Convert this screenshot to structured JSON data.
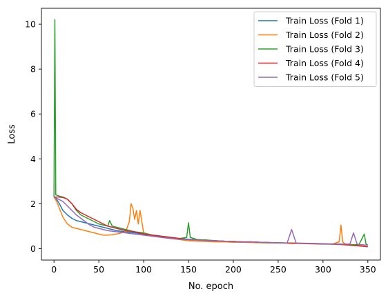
{
  "chart_data": {
    "type": "line",
    "title": "",
    "xlabel": "No. epoch",
    "ylabel": "Loss",
    "xlim": [
      -14,
      364
    ],
    "ylim": [
      -0.51,
      10.71
    ],
    "xticks": [
      0,
      50,
      100,
      150,
      200,
      250,
      300,
      350
    ],
    "xtick_labels": [
      "0",
      "50",
      "100",
      "150",
      "200",
      "250",
      "300",
      "350"
    ],
    "yticks": [
      0,
      2,
      4,
      6,
      8,
      10
    ],
    "ytick_labels": [
      "0",
      "2",
      "4",
      "6",
      "8",
      "10"
    ],
    "grid": false,
    "legend_position": "top-right",
    "series": [
      {
        "name": "Train Loss (Fold 1)",
        "color": "#1f77b4",
        "x": [
          0,
          3,
          6,
          10,
          15,
          20,
          25,
          30,
          35,
          40,
          45,
          50,
          55,
          60,
          70,
          80,
          90,
          100,
          110,
          120,
          130,
          140,
          150,
          160,
          170,
          180,
          190,
          200,
          210,
          220,
          230,
          240,
          250,
          260,
          270,
          280,
          290,
          300,
          310,
          320,
          330,
          340,
          350
        ],
        "y": [
          2.3,
          2.2,
          2.0,
          1.7,
          1.5,
          1.35,
          1.25,
          1.2,
          1.15,
          1.1,
          1.05,
          1.0,
          0.95,
          0.9,
          0.8,
          0.75,
          0.7,
          0.65,
          0.6,
          0.55,
          0.5,
          0.45,
          0.42,
          0.4,
          0.38,
          0.35,
          0.33,
          0.32,
          0.3,
          0.3,
          0.28,
          0.27,
          0.26,
          0.25,
          0.24,
          0.23,
          0.22,
          0.21,
          0.2,
          0.2,
          0.18,
          0.17,
          0.15
        ]
      },
      {
        "name": "Train Loss (Fold 2)",
        "color": "#ff7f0e",
        "x": [
          0,
          3,
          6,
          10,
          15,
          20,
          25,
          30,
          35,
          40,
          45,
          50,
          55,
          60,
          65,
          70,
          75,
          80,
          84,
          86,
          88,
          90,
          92,
          94,
          96,
          98,
          100,
          110,
          120,
          130,
          140,
          150,
          160,
          170,
          180,
          190,
          200,
          210,
          220,
          230,
          240,
          250,
          260,
          270,
          280,
          290,
          300,
          310,
          318,
          320,
          322,
          325,
          330,
          340,
          350
        ],
        "y": [
          2.3,
          2.1,
          1.8,
          1.4,
          1.1,
          0.95,
          0.9,
          0.85,
          0.8,
          0.75,
          0.7,
          0.65,
          0.6,
          0.6,
          0.62,
          0.65,
          0.7,
          0.75,
          1.2,
          2.0,
          1.8,
          1.3,
          1.7,
          1.1,
          1.7,
          1.2,
          0.7,
          0.55,
          0.5,
          0.45,
          0.4,
          0.35,
          0.33,
          0.32,
          0.3,
          0.3,
          0.28,
          0.28,
          0.27,
          0.26,
          0.25,
          0.25,
          0.24,
          0.23,
          0.22,
          0.21,
          0.2,
          0.2,
          0.3,
          1.05,
          0.3,
          0.2,
          0.18,
          0.16,
          0.15
        ]
      },
      {
        "name": "Train Loss (Fold 3)",
        "color": "#2ca02c",
        "x": [
          0,
          1,
          2,
          5,
          10,
          15,
          20,
          25,
          30,
          35,
          40,
          45,
          50,
          55,
          60,
          62,
          65,
          70,
          80,
          90,
          100,
          110,
          120,
          130,
          140,
          148,
          150,
          152,
          160,
          170,
          180,
          190,
          200,
          210,
          220,
          230,
          240,
          250,
          260,
          270,
          280,
          290,
          300,
          310,
          320,
          330,
          340,
          346,
          348,
          350
        ],
        "y": [
          2.3,
          10.2,
          2.4,
          2.35,
          2.3,
          2.2,
          2.0,
          1.7,
          1.5,
          1.4,
          1.3,
          1.2,
          1.1,
          1.05,
          1.0,
          1.25,
          1.0,
          0.95,
          0.85,
          0.75,
          0.7,
          0.6,
          0.55,
          0.5,
          0.45,
          0.5,
          1.15,
          0.5,
          0.4,
          0.38,
          0.35,
          0.33,
          0.32,
          0.3,
          0.3,
          0.28,
          0.27,
          0.26,
          0.25,
          0.24,
          0.23,
          0.22,
          0.21,
          0.2,
          0.2,
          0.18,
          0.17,
          0.65,
          0.2,
          0.15
        ]
      },
      {
        "name": "Train Loss (Fold 4)",
        "color": "#d62728",
        "x": [
          0,
          5,
          10,
          15,
          20,
          25,
          30,
          35,
          40,
          45,
          50,
          55,
          60,
          70,
          80,
          90,
          100,
          110,
          120,
          130,
          140,
          150,
          160,
          170,
          180,
          190,
          200,
          210,
          220,
          230,
          240,
          250,
          260,
          270,
          280,
          290,
          300,
          310,
          320,
          330,
          340,
          350
        ],
        "y": [
          2.3,
          2.3,
          2.28,
          2.2,
          2.0,
          1.75,
          1.6,
          1.5,
          1.4,
          1.3,
          1.2,
          1.1,
          1.0,
          0.9,
          0.8,
          0.75,
          0.65,
          0.6,
          0.55,
          0.5,
          0.45,
          0.4,
          0.38,
          0.36,
          0.35,
          0.33,
          0.32,
          0.3,
          0.3,
          0.28,
          0.27,
          0.26,
          0.25,
          0.24,
          0.23,
          0.22,
          0.21,
          0.2,
          0.18,
          0.15,
          0.12,
          0.08
        ]
      },
      {
        "name": "Train Loss (Fold 5)",
        "color": "#9467bd",
        "x": [
          0,
          5,
          10,
          15,
          20,
          25,
          30,
          35,
          40,
          45,
          50,
          55,
          60,
          70,
          80,
          90,
          100,
          110,
          120,
          130,
          140,
          150,
          160,
          170,
          180,
          190,
          200,
          210,
          220,
          230,
          240,
          250,
          260,
          265,
          270,
          280,
          290,
          300,
          310,
          320,
          330,
          334,
          338,
          340,
          350
        ],
        "y": [
          2.3,
          2.2,
          2.1,
          1.9,
          1.7,
          1.5,
          1.35,
          1.2,
          1.05,
          0.95,
          0.9,
          0.85,
          0.8,
          0.75,
          0.7,
          0.65,
          0.6,
          0.55,
          0.5,
          0.45,
          0.42,
          0.4,
          0.38,
          0.36,
          0.35,
          0.33,
          0.32,
          0.3,
          0.3,
          0.28,
          0.27,
          0.26,
          0.25,
          0.85,
          0.25,
          0.24,
          0.23,
          0.22,
          0.21,
          0.2,
          0.2,
          0.7,
          0.2,
          0.18,
          0.15
        ]
      }
    ]
  }
}
